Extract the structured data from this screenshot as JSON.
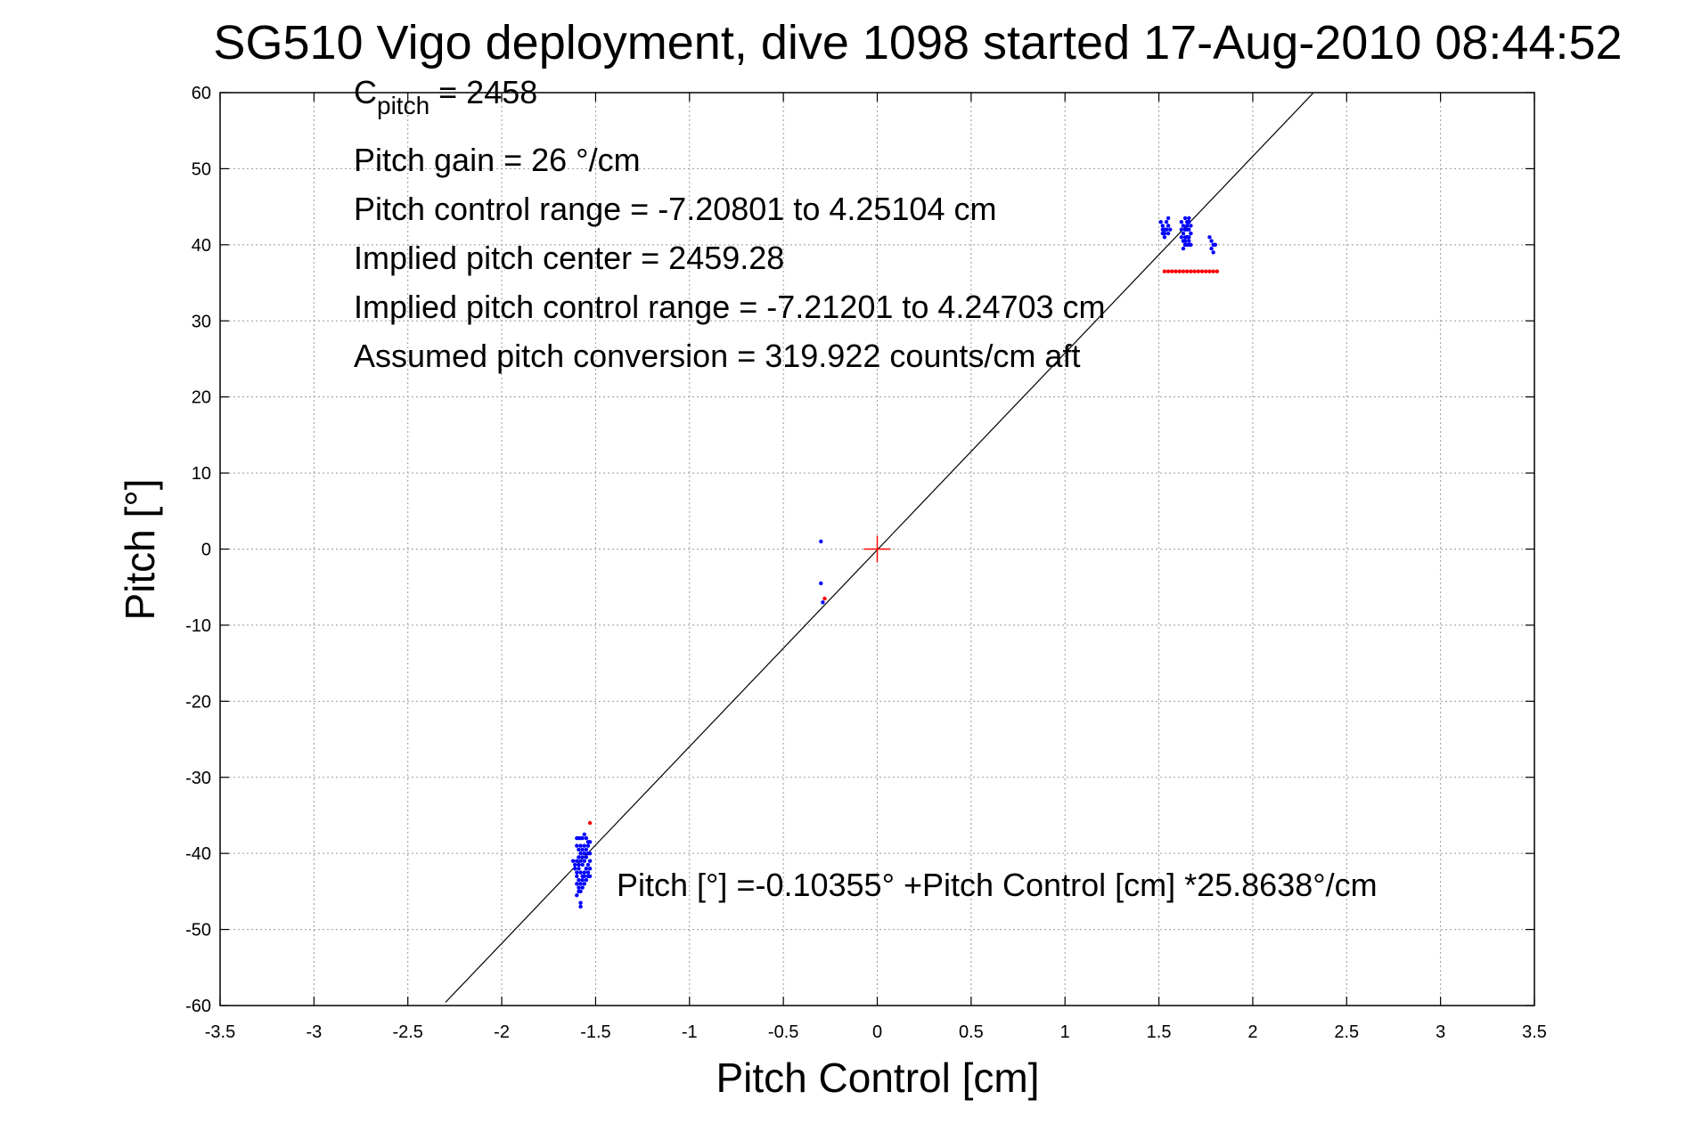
{
  "chart_data": {
    "type": "scatter",
    "title": "SG510 Vigo deployment, dive 1098 started 17-Aug-2010 08:44:52",
    "xlabel": "Pitch Control [cm]",
    "ylabel": "Pitch [°]",
    "xlim": [
      -3.5,
      3.5
    ],
    "ylim": [
      -60,
      60
    ],
    "xticks": [
      -3.5,
      -3,
      -2.5,
      -2,
      -1.5,
      -1,
      -0.5,
      0,
      0.5,
      1,
      1.5,
      2,
      2.5,
      3,
      3.5
    ],
    "xtick_labels": [
      "-3.5",
      "-3",
      "-2.5",
      "-2",
      "-1.5",
      "-1",
      "-0.5",
      "0",
      "0.5",
      "1",
      "1.5",
      "2",
      "2.5",
      "3",
      "3.5"
    ],
    "yticks": [
      -60,
      -50,
      -40,
      -30,
      -20,
      -10,
      0,
      10,
      20,
      30,
      40,
      50,
      60
    ],
    "ytick_labels": [
      "-60",
      "-50",
      "-40",
      "-30",
      "-20",
      "-10",
      "0",
      "10",
      "20",
      "30",
      "40",
      "50",
      "60"
    ],
    "grid": true,
    "colors": {
      "measured": "#0000ff",
      "fitted": "#ff0000",
      "fit_line": "#000000",
      "center_marker": "#ff0000",
      "grid": "#999999"
    },
    "annotations": {
      "c_pitch_symbol": "C",
      "c_pitch_sub": "pitch",
      "c_pitch_value": " = 2458",
      "lines": [
        "Pitch gain = 26 °/cm",
        "Pitch control range = -7.20801 to 4.25104 cm",
        "Implied pitch center = 2459.28",
        "Implied pitch control range = -7.21201 to 4.24703 cm",
        "Assumed pitch conversion = 319.922 counts/cm aft"
      ],
      "fit_equation": "Pitch [°] =-0.10355° +Pitch Control [cm] *25.8638°/cm"
    },
    "fit_line": {
      "intercept": -0.10355,
      "slope": 25.8638,
      "x_range": [
        -2.3,
        2.32
      ]
    },
    "center_marker": {
      "x": 0,
      "y": 0
    },
    "series": [
      {
        "marker": "dot",
        "x": [
          -1.6,
          -1.59,
          -1.58,
          -1.57,
          -1.56,
          -1.55,
          -1.54,
          -1.53,
          -1.6,
          -1.59,
          -1.58,
          -1.57,
          -1.56,
          -1.55,
          -1.54,
          -1.53,
          -1.59,
          -1.58,
          -1.57,
          -1.56,
          -1.55,
          -1.54,
          -1.53,
          -1.62,
          -1.61,
          -1.6,
          -1.59,
          -1.58,
          -1.57,
          -1.56,
          -1.55,
          -1.54,
          -1.53,
          -1.61,
          -1.6,
          -1.59,
          -1.58,
          -1.57,
          -1.56,
          -1.55,
          -1.54,
          -1.53,
          -1.6,
          -1.59,
          -1.58,
          -1.57,
          -1.56,
          -1.55,
          -1.54,
          -1.6,
          -1.59,
          -1.58,
          -1.57,
          -1.56,
          -1.6,
          -1.59,
          -1.58,
          -1.58,
          -0.3,
          -0.3,
          -0.29,
          1.51,
          1.52,
          1.53,
          1.54,
          1.55,
          1.52,
          1.53,
          1.54,
          1.55,
          1.56,
          1.52,
          1.53,
          1.54,
          1.55,
          1.62,
          1.63,
          1.64,
          1.65,
          1.66,
          1.67,
          1.62,
          1.63,
          1.64,
          1.65,
          1.66,
          1.67,
          1.62,
          1.63,
          1.64,
          1.65,
          1.66,
          1.67,
          1.63,
          1.64,
          1.65,
          1.66,
          1.67,
          1.63,
          1.64,
          1.65,
          1.66,
          1.64,
          1.65,
          1.64,
          1.65,
          1.66,
          1.77,
          1.78,
          1.79,
          1.78,
          1.79,
          1.8
        ],
        "y": [
          -38,
          -38,
          -38,
          -38,
          -37.5,
          -38,
          -38.5,
          -38.5,
          -39,
          -39.5,
          -39,
          -39.5,
          -39,
          -39.5,
          -39,
          -40,
          -40.5,
          -40,
          -40.5,
          -40,
          -40.5,
          -40,
          -41,
          -41,
          -41.5,
          -41,
          -41.5,
          -41,
          -41.5,
          -41,
          -42,
          -41.5,
          -42,
          -42,
          -42.5,
          -42,
          -42.5,
          -43,
          -42.5,
          -42,
          -42.5,
          -43,
          -43,
          -43.5,
          -44,
          -43.5,
          -43,
          -43.5,
          -43,
          -44,
          -44.5,
          -45,
          -44.5,
          -44,
          -45.5,
          -45,
          -47,
          -46.5,
          1,
          -4.5,
          -7,
          43,
          42.5,
          42,
          43,
          43.5,
          42,
          41.5,
          42,
          42.5,
          42,
          41.5,
          41,
          42,
          41.5,
          43,
          42.5,
          43.5,
          42,
          43,
          42.5,
          42,
          41.5,
          42,
          41,
          42,
          41.5,
          41,
          40.5,
          41,
          40,
          41,
          40,
          39.5,
          40.5,
          41,
          40,
          41.5,
          40.5,
          40,
          41,
          40.5,
          40,
          43,
          42,
          42.5,
          43.5,
          41,
          40.5,
          40,
          39.5,
          39,
          40
        ]
      },
      {
        "marker": "dot",
        "x": [
          1.53,
          1.55,
          1.57,
          1.59,
          1.61,
          1.63,
          1.65,
          1.67,
          1.69,
          1.71,
          1.73,
          1.75,
          1.77,
          1.79,
          1.81,
          -1.53,
          -0.28
        ],
        "y": [
          36.5,
          36.5,
          36.5,
          36.5,
          36.5,
          36.5,
          36.5,
          36.5,
          36.5,
          36.5,
          36.5,
          36.5,
          36.5,
          36.5,
          36.5,
          -36,
          -6.5
        ]
      }
    ]
  }
}
